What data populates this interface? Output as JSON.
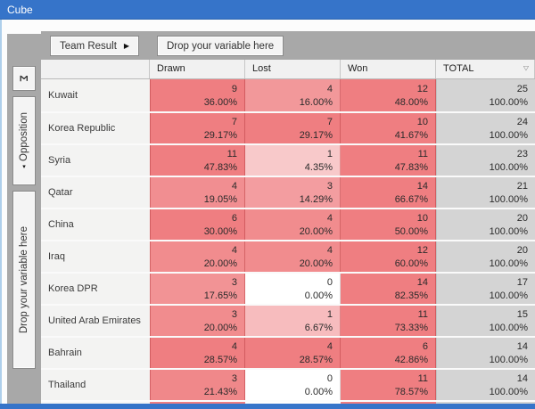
{
  "window": {
    "title": "Cube"
  },
  "colors": {
    "titlebar": "#3674C9",
    "panel": "#A8A8A8",
    "heat_max": "#EF7E81",
    "total_bg": "#D4D4D4",
    "header_bg": "#F1F1F1",
    "label_bg": "#F3F3F2"
  },
  "toolbar": {
    "field_button_label": "Team Result",
    "drop_zone_label": "Drop your variable here"
  },
  "sidebar": {
    "sigma_label": "Σ",
    "field_button_label": "Opposition",
    "drop_zone_label": "Drop your variable here"
  },
  "table": {
    "columns": [
      "Drawn",
      "Lost",
      "Won",
      "TOTAL"
    ],
    "rows": [
      {
        "label": "Kuwait",
        "cells": [
          {
            "count": "9",
            "pct": "36.00%"
          },
          {
            "count": "4",
            "pct": "16.00%"
          },
          {
            "count": "12",
            "pct": "48.00%"
          }
        ],
        "total": {
          "count": "25",
          "pct": "100.00%"
        }
      },
      {
        "label": "Korea Republic",
        "cells": [
          {
            "count": "7",
            "pct": "29.17%"
          },
          {
            "count": "7",
            "pct": "29.17%"
          },
          {
            "count": "10",
            "pct": "41.67%"
          }
        ],
        "total": {
          "count": "24",
          "pct": "100.00%"
        }
      },
      {
        "label": "Syria",
        "cells": [
          {
            "count": "11",
            "pct": "47.83%"
          },
          {
            "count": "1",
            "pct": "4.35%"
          },
          {
            "count": "11",
            "pct": "47.83%"
          }
        ],
        "total": {
          "count": "23",
          "pct": "100.00%"
        }
      },
      {
        "label": "Qatar",
        "cells": [
          {
            "count": "4",
            "pct": "19.05%"
          },
          {
            "count": "3",
            "pct": "14.29%"
          },
          {
            "count": "14",
            "pct": "66.67%"
          }
        ],
        "total": {
          "count": "21",
          "pct": "100.00%"
        }
      },
      {
        "label": "China",
        "cells": [
          {
            "count": "6",
            "pct": "30.00%"
          },
          {
            "count": "4",
            "pct": "20.00%"
          },
          {
            "count": "10",
            "pct": "50.00%"
          }
        ],
        "total": {
          "count": "20",
          "pct": "100.00%"
        }
      },
      {
        "label": "Iraq",
        "cells": [
          {
            "count": "4",
            "pct": "20.00%"
          },
          {
            "count": "4",
            "pct": "20.00%"
          },
          {
            "count": "12",
            "pct": "60.00%"
          }
        ],
        "total": {
          "count": "20",
          "pct": "100.00%"
        }
      },
      {
        "label": "Korea DPR",
        "cells": [
          {
            "count": "3",
            "pct": "17.65%"
          },
          {
            "count": "0",
            "pct": "0.00%"
          },
          {
            "count": "14",
            "pct": "82.35%"
          }
        ],
        "total": {
          "count": "17",
          "pct": "100.00%"
        }
      },
      {
        "label": "United Arab Emirates",
        "cells": [
          {
            "count": "3",
            "pct": "20.00%"
          },
          {
            "count": "1",
            "pct": "6.67%"
          },
          {
            "count": "11",
            "pct": "73.33%"
          }
        ],
        "total": {
          "count": "15",
          "pct": "100.00%"
        }
      },
      {
        "label": "Bahrain",
        "cells": [
          {
            "count": "4",
            "pct": "28.57%"
          },
          {
            "count": "4",
            "pct": "28.57%"
          },
          {
            "count": "6",
            "pct": "42.86%"
          }
        ],
        "total": {
          "count": "14",
          "pct": "100.00%"
        }
      },
      {
        "label": "Thailand",
        "cells": [
          {
            "count": "3",
            "pct": "21.43%"
          },
          {
            "count": "0",
            "pct": "0.00%"
          },
          {
            "count": "11",
            "pct": "78.57%"
          }
        ],
        "total": {
          "count": "14",
          "pct": "100.00%"
        }
      }
    ],
    "filter_icon_glyph": "▽"
  }
}
